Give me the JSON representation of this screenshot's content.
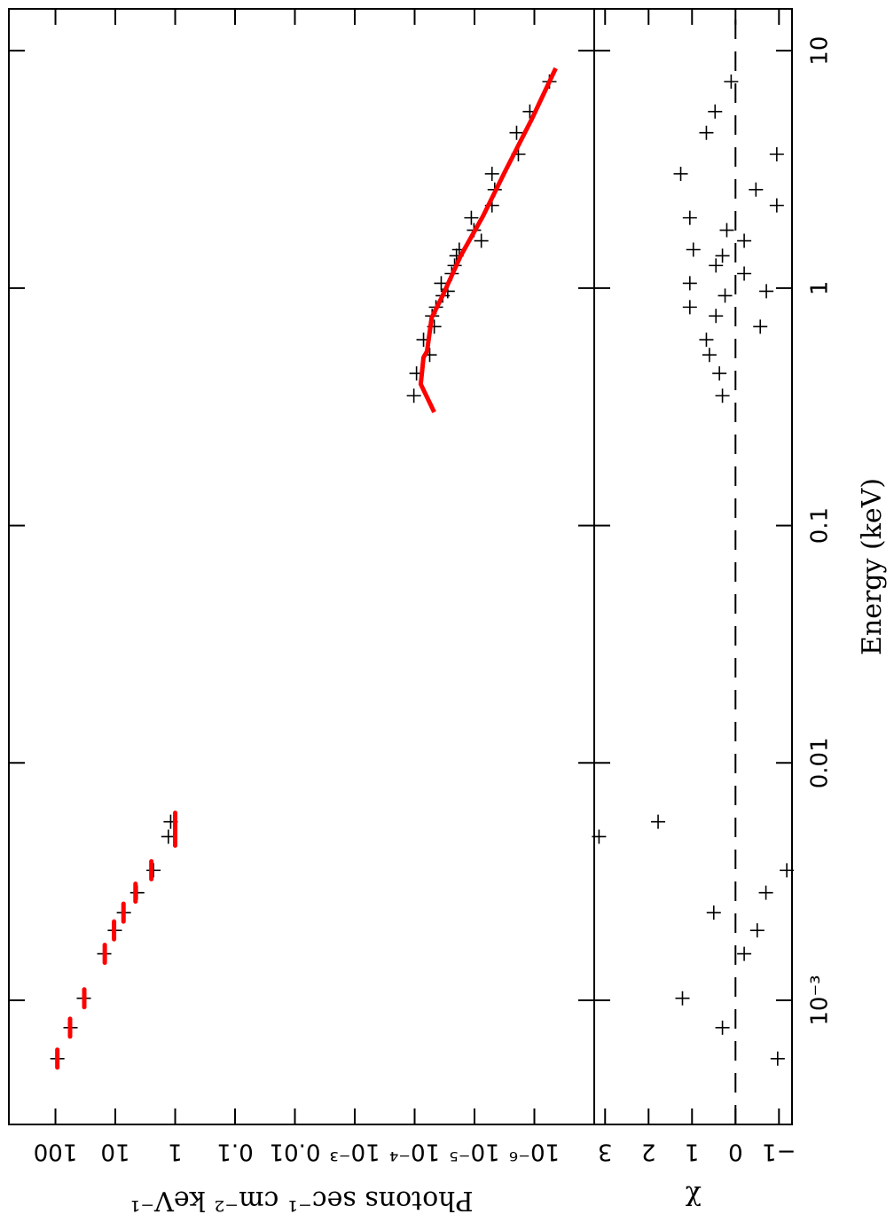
{
  "chart_data": [
    {
      "type": "scatter",
      "xlog": true,
      "ylog": true,
      "xlim": [
        0.0003,
        15
      ],
      "ylim": [
        1e-07,
        600
      ],
      "ylabel": "Photons sec⁻¹ cm⁻² keV⁻¹",
      "yticks": [
        100,
        10,
        1,
        0.1,
        0.01,
        {
          "value": 0.001,
          "label": "10⁻³"
        },
        {
          "value": 0.0001,
          "label": "10⁻⁴"
        },
        {
          "value": 1e-05,
          "label": "10⁻⁵"
        },
        {
          "value": 1e-06,
          "label": "10⁻⁶"
        }
      ],
      "series": [
        {
          "color": "#000000",
          "style": "cross",
          "x": [
            0.000568,
            0.000767,
            0.00102,
            0.00157,
            0.00197,
            0.00234,
            0.00284,
            0.00353,
            0.00489,
            0.00565,
            0.352,
            0.437,
            0.523,
            0.606,
            0.688,
            0.763,
            0.831,
            0.929,
            0.97,
            1.048,
            1.151,
            1.245,
            1.368,
            1.452,
            1.582,
            1.754,
            1.977,
            2.23,
            2.6,
            3.03,
            3.66,
            4.51,
            5.54,
            7.41
          ],
          "values": [
            93,
            56,
            33.6,
            15.3,
            10.2,
            7.2,
            4.3,
            2.3,
            1.3,
            1.19,
            0.000103,
            9.3e-05,
            5.6e-05,
            7.1e-05,
            4.7e-05,
            5.1e-05,
            4.4e-05,
            3.4e-05,
            2.8e-05,
            3.6e-05,
            2.4e-05,
            2.15e-05,
            2e-05,
            1.8e-05,
            7.7e-06,
            1.02e-05,
            1.13e-05,
            5.1e-06,
            4.6e-06,
            5.1e-06,
            1.85e-06,
            1.98e-06,
            1.19e-06,
            5.6e-07
          ]
        },
        {
          "color": "#ff0000",
          "style": "bins",
          "x": [
            0.000568,
            0.000767,
            0.00102,
            0.00157,
            0.00197,
            0.00234,
            0.00284,
            0.00353,
            0.00489,
            0.00565
          ],
          "values": [
            93,
            57,
            33,
            15,
            10.5,
            7.3,
            4.6,
            2.5,
            1.0,
            1.0
          ]
        },
        {
          "color": "#ff0000",
          "style": "line",
          "x": [
            0.3,
            0.394,
            0.51,
            0.542,
            0.75,
            0.929,
            1.368,
            2.01,
            3.09,
            5.16,
            8.43
          ],
          "values": [
            4.7e-05,
            7.9e-05,
            7.1e-05,
            6.2e-05,
            5.2e-05,
            3.4e-05,
            1.7e-05,
            7.2e-06,
            3.1e-06,
            1.1e-06,
            4.4e-07
          ]
        }
      ]
    },
    {
      "type": "scatter",
      "xlog": true,
      "ylog": false,
      "xlim": [
        0.0003,
        15
      ],
      "ylim": [
        -1.3,
        3.25
      ],
      "xlabel": "Energy (keV)",
      "ylabel": "χ",
      "xticks": [
        {
          "value": 0.001,
          "label": "10⁻³"
        },
        0.01,
        0.1,
        1,
        10
      ],
      "yticks": [
        {
          "value": -1,
          "label": "−1"
        },
        0,
        1,
        2,
        3
      ],
      "reference_line": 0,
      "series": [
        {
          "color": "#000000",
          "style": "cross",
          "x": [
            0.000568,
            0.000767,
            0.00102,
            0.00157,
            0.00197,
            0.00234,
            0.00284,
            0.00353,
            0.00489,
            0.00565,
            0.352,
            0.437,
            0.523,
            0.606,
            0.688,
            0.763,
            0.831,
            0.929,
            0.97,
            1.048,
            1.151,
            1.245,
            1.368,
            1.452,
            1.582,
            1.754,
            1.977,
            2.23,
            2.6,
            3.03,
            3.66,
            4.51,
            5.54,
            7.41
          ],
          "values": [
            -0.97,
            0.3,
            1.22,
            -0.2,
            -0.5,
            0.5,
            -0.7,
            -1.18,
            3.14,
            1.78,
            0.3,
            0.37,
            0.6,
            0.67,
            -0.57,
            0.45,
            1.05,
            0.24,
            -0.71,
            1.05,
            -0.2,
            0.45,
            0.3,
            0.97,
            -0.2,
            0.2,
            1.05,
            -0.95,
            -0.47,
            1.26,
            -0.95,
            0.67,
            0.47,
            0.1
          ]
        }
      ]
    }
  ]
}
